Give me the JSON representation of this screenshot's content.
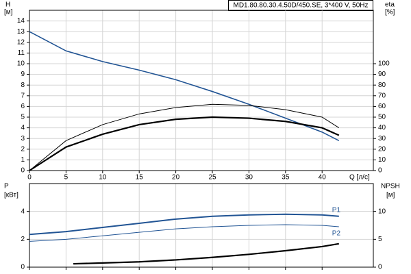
{
  "chart_data": [
    {
      "type": "line",
      "title": "MD1.80.80.30.4.50D/450.SE, 3*400 V, 50Hz",
      "ylabel": "H",
      "yunit": "[м]",
      "y2label": "eta",
      "y2unit": "[%]",
      "xlabel": "Q [л/с]",
      "xlim": [
        0,
        47
      ],
      "xticks": [
        0,
        5,
        10,
        15,
        20,
        25,
        30,
        35,
        40
      ],
      "ylim": [
        0,
        15
      ],
      "yticks": [
        0,
        1,
        2,
        3,
        4,
        5,
        6,
        7,
        8,
        9,
        10,
        11,
        12,
        13,
        14
      ],
      "y2lim": [
        0,
        150
      ],
      "y2ticks": [
        0,
        10,
        20,
        30,
        40,
        50,
        60,
        70,
        80,
        90,
        100
      ],
      "grid": true,
      "series": [
        {
          "color": "#215494",
          "linewidth": 1.6,
          "x": [
            0,
            5,
            10,
            15,
            20,
            25,
            30,
            35,
            40,
            42.3
          ],
          "values": [
            13,
            11.2,
            10.2,
            9.4,
            8.5,
            7.4,
            6.2,
            4.9,
            3.6,
            2.8
          ]
        },
        {
          "color": "#000000",
          "linewidth": 1,
          "axis": "y2",
          "x": [
            0,
            5,
            10,
            15,
            20,
            25,
            30,
            35,
            40,
            42.3
          ],
          "values": [
            0,
            28,
            43,
            53,
            59,
            62,
            61,
            57,
            50,
            40
          ]
        },
        {
          "color": "#000000",
          "linewidth": 2.2,
          "axis": "y2",
          "x": [
            0,
            5,
            10,
            15,
            20,
            25,
            30,
            35,
            40,
            42.3
          ],
          "values": [
            0,
            22,
            34,
            43,
            48,
            50,
            49,
            46,
            40,
            33
          ]
        }
      ]
    },
    {
      "type": "line",
      "ylabel": "P",
      "yunit": "[кВт]",
      "y2label": "NPSH",
      "y2unit": "[м]",
      "xlim": [
        0,
        47
      ],
      "ylim": [
        0,
        6
      ],
      "yticks": [
        0,
        2,
        4
      ],
      "y2lim": [
        0,
        15
      ],
      "y2ticks": [
        0,
        5,
        10
      ],
      "grid": true,
      "series": [
        {
          "name": "P1",
          "color": "#215494",
          "linewidth": 2,
          "x": [
            0,
            5,
            10,
            15,
            20,
            25,
            30,
            35,
            40,
            42.3
          ],
          "values": [
            2.35,
            2.55,
            2.85,
            3.15,
            3.45,
            3.65,
            3.75,
            3.8,
            3.75,
            3.65
          ]
        },
        {
          "name": "P2",
          "color": "#215494",
          "linewidth": 1,
          "x": [
            0,
            5,
            10,
            15,
            20,
            25,
            30,
            35,
            40,
            42.3
          ],
          "values": [
            1.85,
            2.0,
            2.25,
            2.5,
            2.75,
            2.9,
            3.0,
            3.05,
            3.0,
            2.9
          ]
        },
        {
          "color": "#000000",
          "linewidth": 2.2,
          "axis": "y2",
          "x": [
            6,
            10,
            15,
            20,
            25,
            30,
            35,
            40,
            42.3
          ],
          "values": [
            0.6,
            0.75,
            0.95,
            1.3,
            1.75,
            2.3,
            2.95,
            3.7,
            4.2
          ]
        }
      ]
    }
  ]
}
